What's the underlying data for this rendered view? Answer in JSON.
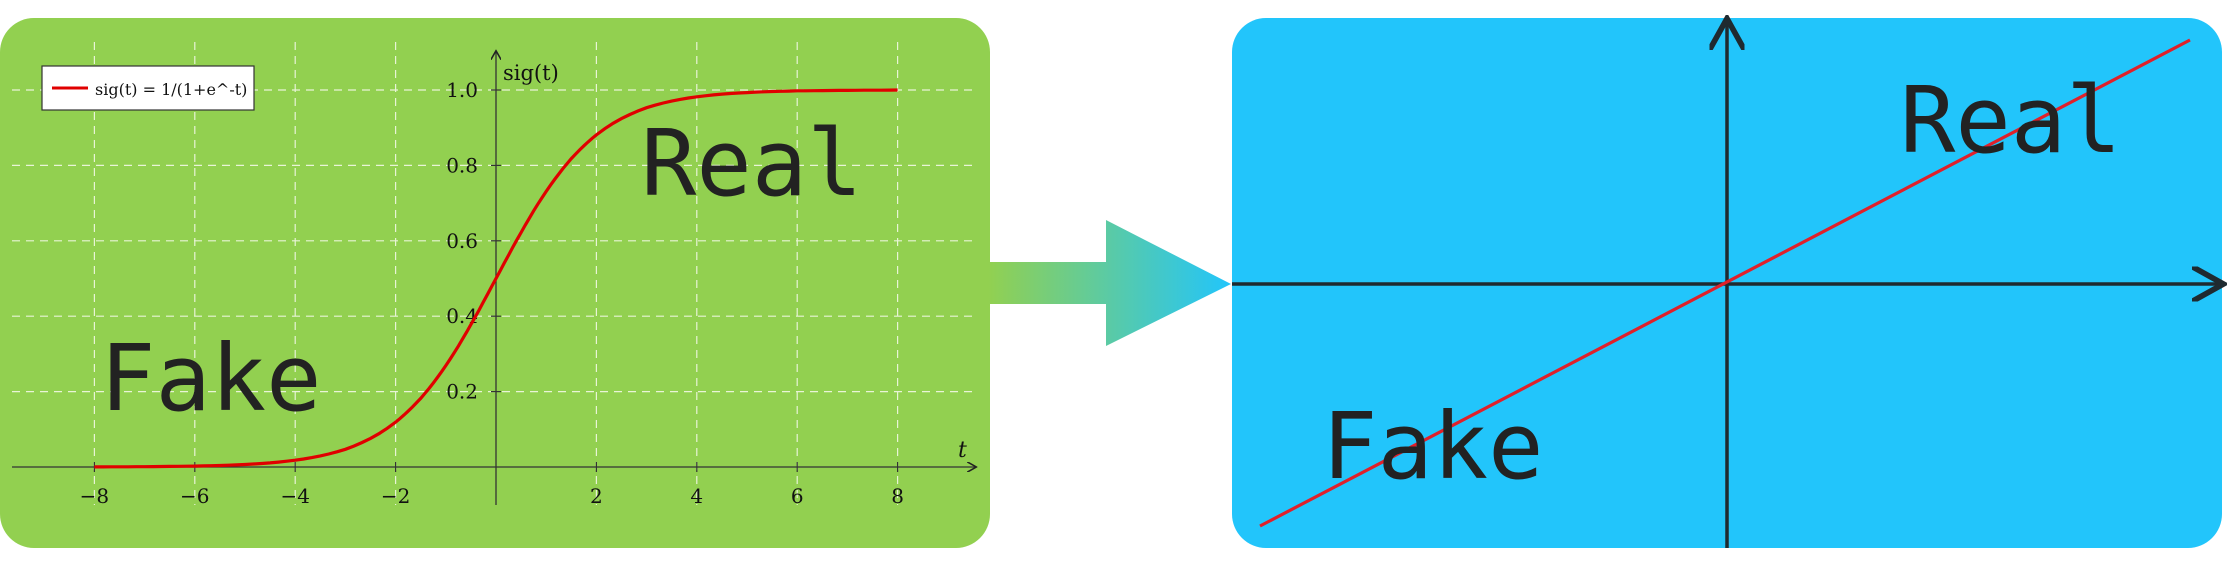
{
  "left_panel": {
    "real_word": "Real",
    "fake_word": "Fake",
    "color": "#92d050"
  },
  "right_panel": {
    "real_word": "Real",
    "fake_word": "Fake",
    "color": "#22c5fb"
  },
  "arrow": {
    "from_color": "#92d050",
    "to_color": "#22c5fb"
  },
  "chart_data": {
    "type": "line",
    "function": "sigmoid",
    "legend": "sig(t) = 1/(1+e^-t)",
    "ylabel": "sig(t)",
    "xlabel": "t",
    "xlim": [
      -9.5,
      9.5
    ],
    "ylim": [
      0,
      1.1
    ],
    "x_ticks": [
      -8,
      -6,
      -4,
      -2,
      2,
      4,
      6,
      8
    ],
    "x_tick_labels": [
      "−8",
      "−6",
      "−4",
      "−2",
      "2",
      "4",
      "6",
      "8"
    ],
    "y_ticks": [
      0.2,
      0.4,
      0.6,
      0.8,
      1.0
    ],
    "y_tick_labels": [
      "0.2",
      "0.4",
      "0.6",
      "0.8",
      "1.0"
    ],
    "x": [
      -8,
      -7,
      -6,
      -5,
      -4,
      -3,
      -2,
      -1.5,
      -1,
      -0.5,
      0,
      0.5,
      1,
      1.5,
      2,
      3,
      4,
      5,
      6,
      7,
      8
    ],
    "y": [
      0.0003,
      0.0009,
      0.0025,
      0.0067,
      0.018,
      0.047,
      0.119,
      0.182,
      0.269,
      0.378,
      0.5,
      0.622,
      0.731,
      0.818,
      0.881,
      0.953,
      0.982,
      0.993,
      0.998,
      0.999,
      1.0
    ],
    "line_color": "#e00000",
    "grid": true
  }
}
